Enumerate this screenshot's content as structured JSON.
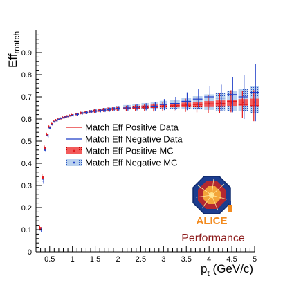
{
  "chart_data": {
    "type": "scatter",
    "xlabel_main": "p",
    "xlabel_sub": "t",
    "xlabel_unit": " (GeV/c)",
    "ylabel_main": "Eff",
    "ylabel_sub": "match",
    "xlim": [
      0.2,
      5.0
    ],
    "ylim": [
      0,
      1.0
    ],
    "xticks": [
      0.5,
      1,
      1.5,
      2,
      2.5,
      3,
      3.5,
      4,
      4.5,
      5
    ],
    "xtick_labels": [
      "0.5",
      "1",
      "1.5",
      "2",
      "2.5",
      "3",
      "3.5",
      "4",
      "4.5",
      "5"
    ],
    "yticks": [
      0,
      0.1,
      0.2,
      0.3,
      0.4,
      0.5,
      0.6,
      0.7,
      0.8,
      0.9
    ],
    "ytick_labels": [
      "0",
      "0.1",
      "0.2",
      "0.3",
      "0.4",
      "0.5",
      "0.6",
      "0.7",
      "0.8",
      "0.9"
    ],
    "grid": false,
    "legend_position": "center-left",
    "x": [
      0.3,
      0.35,
      0.4,
      0.45,
      0.5,
      0.55,
      0.6,
      0.65,
      0.7,
      0.75,
      0.8,
      0.85,
      0.9,
      0.95,
      1.0,
      1.1,
      1.2,
      1.3,
      1.4,
      1.5,
      1.6,
      1.7,
      1.8,
      1.9,
      2.0,
      2.2,
      2.4,
      2.6,
      2.8,
      3.0,
      3.25,
      3.5,
      3.75,
      4.0,
      4.25,
      4.5,
      4.75,
      5.0
    ],
    "series": [
      {
        "name": "Match Eff Positive Data",
        "color": "#e31a1c",
        "style": "errorbar",
        "values": [
          0.11,
          0.34,
          0.47,
          0.53,
          0.565,
          0.58,
          0.59,
          0.595,
          0.6,
          0.603,
          0.607,
          0.61,
          0.613,
          0.616,
          0.618,
          0.622,
          0.627,
          0.63,
          0.633,
          0.636,
          0.639,
          0.641,
          0.643,
          0.645,
          0.647,
          0.648,
          0.65,
          0.651,
          0.652,
          0.655,
          0.66,
          0.662,
          0.665,
          0.668,
          0.67,
          0.68,
          0.665,
          0.66
        ],
        "errors": [
          0.01,
          0.012,
          0.01,
          0.008,
          0.006,
          0.005,
          0.005,
          0.005,
          0.005,
          0.005,
          0.005,
          0.005,
          0.005,
          0.005,
          0.005,
          0.006,
          0.006,
          0.007,
          0.007,
          0.008,
          0.008,
          0.009,
          0.009,
          0.01,
          0.01,
          0.012,
          0.014,
          0.016,
          0.018,
          0.02,
          0.025,
          0.03,
          0.035,
          0.04,
          0.045,
          0.05,
          0.06,
          0.07
        ]
      },
      {
        "name": "Match Eff Negative Data",
        "color": "#1f3fc8",
        "style": "errorbar",
        "values": [
          0.1,
          0.32,
          0.46,
          0.525,
          0.56,
          0.575,
          0.588,
          0.594,
          0.599,
          0.602,
          0.606,
          0.609,
          0.612,
          0.615,
          0.617,
          0.621,
          0.626,
          0.629,
          0.632,
          0.635,
          0.638,
          0.64,
          0.642,
          0.646,
          0.648,
          0.65,
          0.653,
          0.655,
          0.658,
          0.665,
          0.67,
          0.68,
          0.69,
          0.7,
          0.695,
          0.71,
          0.7,
          0.72
        ],
        "errors": [
          0.01,
          0.012,
          0.01,
          0.008,
          0.006,
          0.005,
          0.005,
          0.005,
          0.005,
          0.005,
          0.005,
          0.005,
          0.005,
          0.005,
          0.005,
          0.006,
          0.006,
          0.007,
          0.007,
          0.008,
          0.008,
          0.009,
          0.009,
          0.01,
          0.01,
          0.012,
          0.014,
          0.016,
          0.02,
          0.025,
          0.03,
          0.04,
          0.045,
          0.05,
          0.06,
          0.08,
          0.1,
          0.13
        ]
      },
      {
        "name": "Match Eff Positive MC",
        "color": "#e31a1c",
        "style": "box",
        "values": [
          0.105,
          0.335,
          0.465,
          0.528,
          0.562,
          0.577,
          0.588,
          0.594,
          0.598,
          0.602,
          0.606,
          0.609,
          0.612,
          0.615,
          0.618,
          0.622,
          0.626,
          0.63,
          0.633,
          0.636,
          0.639,
          0.641,
          0.643,
          0.645,
          0.648,
          0.651,
          0.653,
          0.655,
          0.658,
          0.66,
          0.662,
          0.664,
          0.667,
          0.669,
          0.671,
          0.673,
          0.675,
          0.676
        ],
        "errors": [
          0.004,
          0.005,
          0.004,
          0.003,
          0.003,
          0.003,
          0.003,
          0.003,
          0.003,
          0.003,
          0.003,
          0.003,
          0.003,
          0.003,
          0.003,
          0.003,
          0.003,
          0.003,
          0.003,
          0.004,
          0.004,
          0.004,
          0.004,
          0.004,
          0.005,
          0.005,
          0.006,
          0.006,
          0.007,
          0.008,
          0.009,
          0.01,
          0.011,
          0.012,
          0.013,
          0.014,
          0.015,
          0.016
        ]
      },
      {
        "name": "Match Eff Negative MC",
        "color": "#1f3fc8",
        "fill": "#a9c6e8",
        "style": "box",
        "values": [
          0.1,
          0.33,
          0.46,
          0.525,
          0.56,
          0.575,
          0.587,
          0.593,
          0.598,
          0.602,
          0.606,
          0.609,
          0.612,
          0.615,
          0.618,
          0.623,
          0.628,
          0.632,
          0.635,
          0.638,
          0.641,
          0.643,
          0.645,
          0.648,
          0.65,
          0.653,
          0.656,
          0.658,
          0.661,
          0.664,
          0.667,
          0.67,
          0.673,
          0.676,
          0.679,
          0.682,
          0.685,
          0.688
        ],
        "errors": [
          0.004,
          0.005,
          0.004,
          0.003,
          0.003,
          0.003,
          0.003,
          0.003,
          0.003,
          0.003,
          0.003,
          0.003,
          0.003,
          0.003,
          0.003,
          0.004,
          0.004,
          0.005,
          0.005,
          0.006,
          0.006,
          0.007,
          0.007,
          0.008,
          0.008,
          0.01,
          0.012,
          0.014,
          0.016,
          0.018,
          0.02,
          0.025,
          0.03,
          0.035,
          0.04,
          0.045,
          0.05,
          0.06
        ]
      }
    ],
    "annotations": [
      "Performance"
    ],
    "logo_text": "ALICE"
  }
}
